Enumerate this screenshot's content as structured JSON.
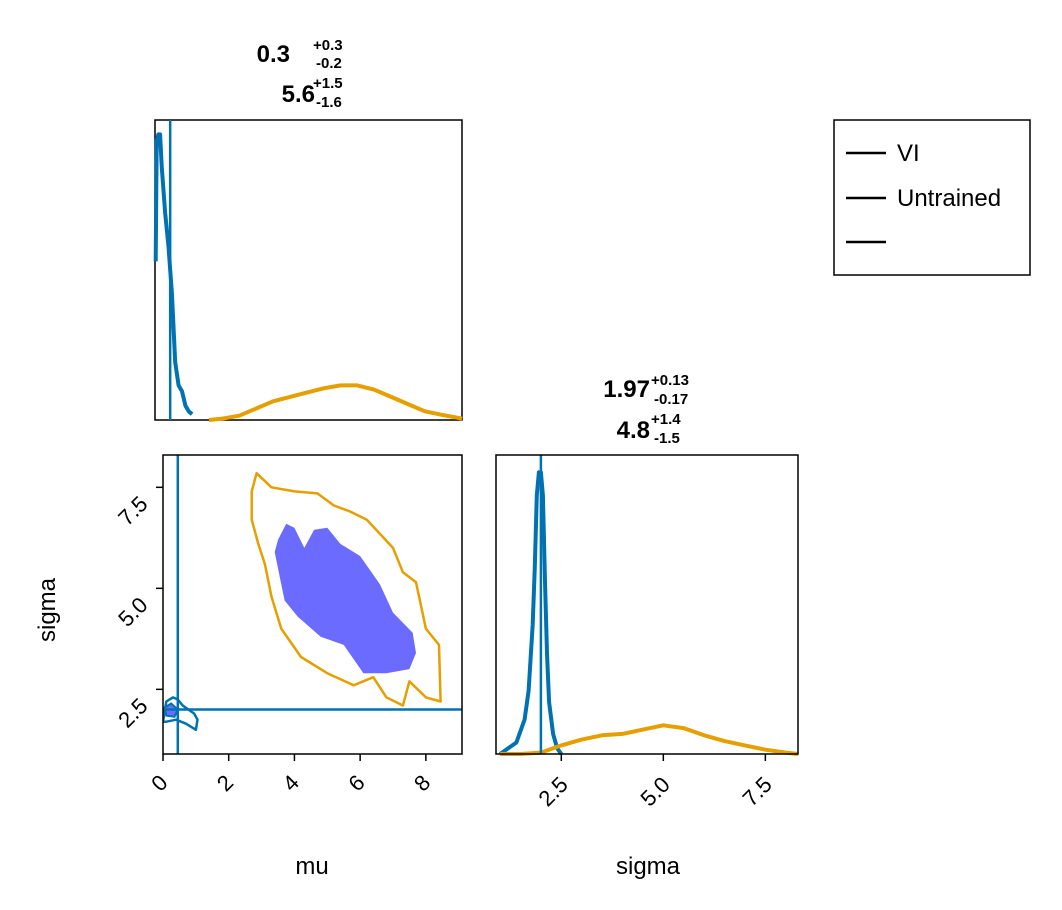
{
  "colors": {
    "vi": "#0072b2",
    "untrained": "#e69f00",
    "vi_fill": "#6b6bff",
    "frame": "#000000"
  },
  "legend": {
    "items": [
      "VI",
      "Untrained",
      ""
    ]
  },
  "truth": {
    "mu": 0.45,
    "sigma": 2.0
  },
  "chart_data": [
    {
      "type": "line",
      "panel": "mu marginal",
      "summary": [
        {
          "value": "0.3",
          "plus": "+0.3",
          "minus": "-0.2"
        },
        {
          "value": "5.6",
          "plus": "+1.5",
          "minus": "-1.6"
        }
      ],
      "xlim": [
        0,
        9.1
      ],
      "series": [
        {
          "name": "VI",
          "x": [
            0.02,
            0.05,
            0.1,
            0.15,
            0.2,
            0.3,
            0.4,
            0.5,
            0.6,
            0.7,
            0.8,
            0.9,
            1.0,
            1.1
          ],
          "density": [
            0.55,
            0.97,
            0.99,
            0.99,
            0.88,
            0.72,
            0.6,
            0.44,
            0.2,
            0.12,
            0.1,
            0.05,
            0.03,
            0.02
          ]
        },
        {
          "name": "Untrained",
          "x": [
            1.6,
            2,
            2.5,
            3,
            3.5,
            4,
            4.5,
            5,
            5.5,
            6,
            6.5,
            7,
            7.5,
            8,
            8.5,
            9.1
          ],
          "density": [
            0.0,
            0.005,
            0.015,
            0.04,
            0.065,
            0.08,
            0.095,
            0.11,
            0.12,
            0.12,
            0.105,
            0.08,
            0.055,
            0.03,
            0.018,
            0.005
          ]
        }
      ]
    },
    {
      "type": "scatter",
      "panel": "mu vs sigma joint",
      "xlabel": "mu",
      "ylabel": "sigma",
      "xlim": [
        0,
        9.1
      ],
      "ylim": [
        0.9,
        8.3
      ],
      "xticks": [
        "0",
        "2",
        "4",
        "6",
        "8"
      ],
      "yticks": [
        "2.5",
        "5.0",
        "7.5"
      ],
      "regions": [
        {
          "name": "Untrained",
          "level": "outer contour",
          "points": [
            [
              2.85,
              7.85
            ],
            [
              3.3,
              7.5
            ],
            [
              4.0,
              7.4
            ],
            [
              4.7,
              7.35
            ],
            [
              5.2,
              7.05
            ],
            [
              5.7,
              6.9
            ],
            [
              6.2,
              6.7
            ],
            [
              7.0,
              6.0
            ],
            [
              7.3,
              5.4
            ],
            [
              7.7,
              5.15
            ],
            [
              8.0,
              4.0
            ],
            [
              8.4,
              3.6
            ],
            [
              8.45,
              2.2
            ],
            [
              8.0,
              2.3
            ],
            [
              7.5,
              2.7
            ],
            [
              7.3,
              2.1
            ],
            [
              6.8,
              2.3
            ],
            [
              6.4,
              2.8
            ],
            [
              5.8,
              2.6
            ],
            [
              5.0,
              2.9
            ],
            [
              4.2,
              3.3
            ],
            [
              3.6,
              4.0
            ],
            [
              3.3,
              4.8
            ],
            [
              3.1,
              5.6
            ],
            [
              2.9,
              6.1
            ],
            [
              2.7,
              6.7
            ],
            [
              2.7,
              7.4
            ]
          ]
        },
        {
          "name": "Untrained",
          "level": "inner filled region",
          "points": [
            [
              3.5,
              6.2
            ],
            [
              3.75,
              6.6
            ],
            [
              4.0,
              6.5
            ],
            [
              4.3,
              6.0
            ],
            [
              4.6,
              6.45
            ],
            [
              5.0,
              6.5
            ],
            [
              5.4,
              6.1
            ],
            [
              6.0,
              5.8
            ],
            [
              6.6,
              5.1
            ],
            [
              7.0,
              4.4
            ],
            [
              7.6,
              3.9
            ],
            [
              7.7,
              3.4
            ],
            [
              7.5,
              3.0
            ],
            [
              6.8,
              2.9
            ],
            [
              6.1,
              2.9
            ],
            [
              5.5,
              3.6
            ],
            [
              4.8,
              3.8
            ],
            [
              4.1,
              4.3
            ],
            [
              3.7,
              4.7
            ],
            [
              3.55,
              5.3
            ],
            [
              3.4,
              5.9
            ]
          ]
        },
        {
          "name": "VI",
          "level": "outer contour",
          "points": [
            [
              0.0,
              1.7
            ],
            [
              0.1,
              2.2
            ],
            [
              0.3,
              2.3
            ],
            [
              0.45,
              2.25
            ],
            [
              0.6,
              2.1
            ],
            [
              0.95,
              1.9
            ],
            [
              1.05,
              1.75
            ],
            [
              1.0,
              1.5
            ],
            [
              0.7,
              1.65
            ],
            [
              0.4,
              1.75
            ],
            [
              0.1,
              1.7
            ]
          ]
        },
        {
          "name": "VI",
          "level": "inner filled region",
          "points": [
            [
              0.05,
              2.05
            ],
            [
              0.25,
              2.15
            ],
            [
              0.45,
              2.0
            ],
            [
              0.35,
              1.82
            ],
            [
              0.1,
              1.85
            ]
          ]
        }
      ]
    },
    {
      "type": "line",
      "panel": "sigma marginal",
      "xlabel": "sigma",
      "summary": [
        {
          "value": "1.97",
          "plus": "+0.13",
          "minus": "-0.17"
        },
        {
          "value": "4.8",
          "plus": "+1.4",
          "minus": "-1.5"
        }
      ],
      "xlim": [
        0.9,
        8.3
      ],
      "xticks": [
        "2.5",
        "5.0",
        "7.5"
      ],
      "series": [
        {
          "name": "VI",
          "x": [
            1.0,
            1.2,
            1.4,
            1.5,
            1.6,
            1.7,
            1.8,
            1.85,
            1.9,
            1.95,
            2.0,
            2.05,
            2.1,
            2.15,
            2.2,
            2.3,
            2.4,
            2.5
          ],
          "density": [
            0.0,
            0.02,
            0.04,
            0.08,
            0.12,
            0.22,
            0.45,
            0.65,
            0.9,
            0.98,
            0.98,
            0.9,
            0.6,
            0.35,
            0.18,
            0.07,
            0.02,
            0.0
          ]
        },
        {
          "name": "Untrained",
          "x": [
            1.0,
            1.5,
            2.0,
            2.5,
            3.0,
            3.5,
            4.0,
            4.5,
            5.0,
            5.5,
            6.0,
            6.5,
            7.0,
            7.5,
            8.0,
            8.3
          ],
          "density": [
            0.0,
            0.0,
            0.005,
            0.03,
            0.05,
            0.065,
            0.07,
            0.085,
            0.1,
            0.09,
            0.065,
            0.045,
            0.03,
            0.015,
            0.005,
            0.0
          ]
        }
      ]
    }
  ]
}
